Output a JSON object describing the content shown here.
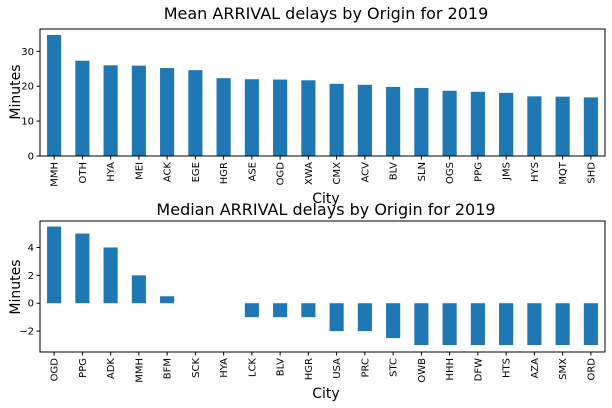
{
  "chart_data": [
    {
      "type": "bar",
      "title": "Mean ARRIVAL delays by Origin for 2019",
      "xlabel": "City",
      "ylabel": "Minutes",
      "categories": [
        "MMH",
        "OTH",
        "HYA",
        "MEI",
        "ACK",
        "EGE",
        "HGR",
        "ASE",
        "OGD",
        "XWA",
        "CMX",
        "ACV",
        "BLV",
        "SLN",
        "OGS",
        "PPG",
        "JMS",
        "HYS",
        "MQT",
        "SHD"
      ],
      "values": [
        34.7,
        27.3,
        26.0,
        25.9,
        25.2,
        24.6,
        22.3,
        22.0,
        21.9,
        21.7,
        20.7,
        20.4,
        19.8,
        19.5,
        18.7,
        18.4,
        18.1,
        17.1,
        17.0,
        16.8
      ],
      "ylim": [
        0,
        36.4
      ],
      "yticks": [
        0,
        10,
        20,
        30
      ],
      "grid": false,
      "color": "#1f77b4"
    },
    {
      "type": "bar",
      "title": "Median ARRIVAL delays by Origin for 2019",
      "xlabel": "City",
      "ylabel": "Minutes",
      "categories": [
        "OGD",
        "PPG",
        "ADK",
        "MMH",
        "BFM",
        "SCK",
        "HYA",
        "LCK",
        "BLV",
        "HGR",
        "USA",
        "PRC",
        "STC",
        "OWB",
        "HHH",
        "DFW",
        "HTS",
        "AZA",
        "SMX",
        "ORD"
      ],
      "values": [
        5.5,
        5.0,
        4.0,
        2.0,
        0.5,
        0,
        0,
        -1.0,
        -1.0,
        -1.0,
        -2.0,
        -2.0,
        -2.5,
        -3.0,
        -3.0,
        -3.0,
        -3.0,
        -3.0,
        -3.0,
        -3.0
      ],
      "ylim": [
        -3.5,
        5.9
      ],
      "yticks": [
        -2,
        0,
        2,
        4
      ],
      "grid": false,
      "color": "#1f77b4"
    }
  ]
}
